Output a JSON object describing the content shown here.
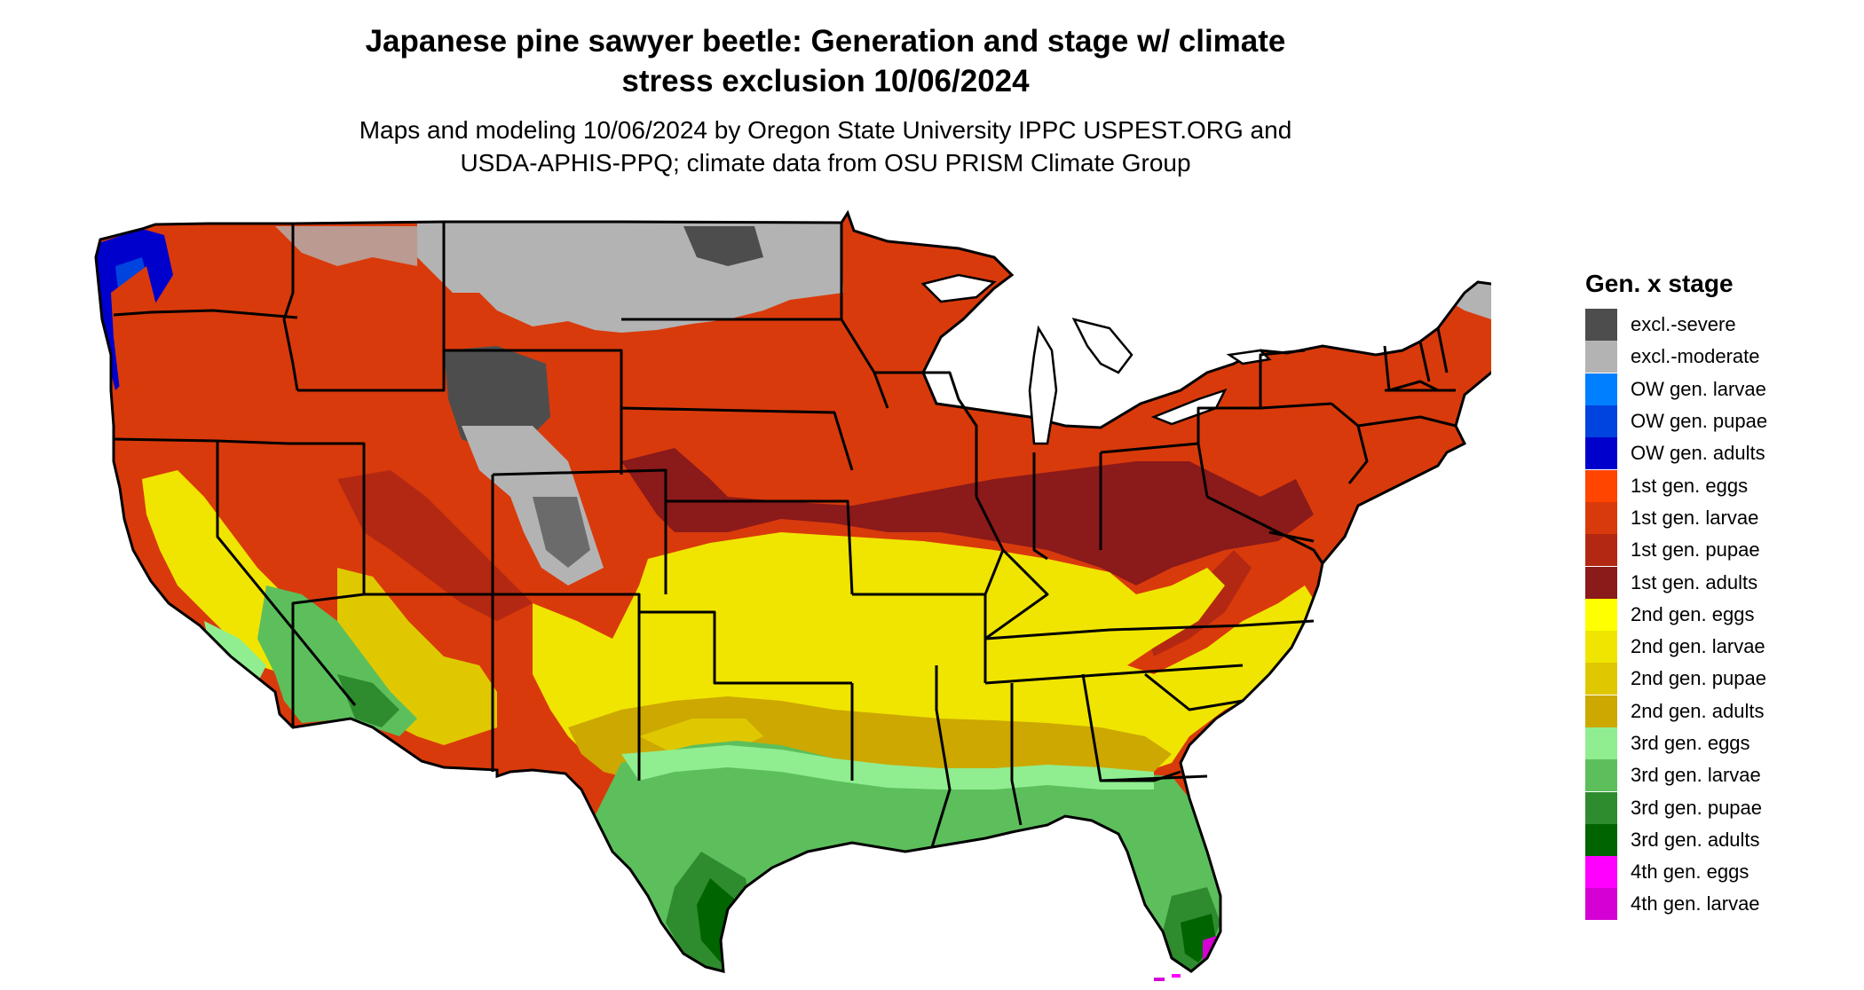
{
  "title_line1": "Japanese pine sawyer beetle: Generation and stage w/ climate",
  "title_line2": "stress exclusion 10/06/2024",
  "subtitle_line1": "Maps and modeling 10/06/2024 by Oregon State University IPPC USPEST.ORG and",
  "subtitle_line2": "USDA-APHIS-PPQ; climate data from OSU PRISM Climate Group",
  "legend": {
    "title": "Gen. x stage",
    "items": [
      {
        "label": "excl.-severe",
        "color": "#4d4d4d"
      },
      {
        "label": "excl.-moderate",
        "color": "#b3b3b3"
      },
      {
        "label": "OW gen. larvae",
        "color": "#0080ff"
      },
      {
        "label": "OW gen. pupae",
        "color": "#0044e0"
      },
      {
        "label": "OW gen. adults",
        "color": "#0000cc"
      },
      {
        "label": "1st gen. eggs",
        "color": "#ff4500"
      },
      {
        "label": "1st gen. larvae",
        "color": "#d93a0b"
      },
      {
        "label": "1st gen. pupae",
        "color": "#b32812"
      },
      {
        "label": "1st gen. adults",
        "color": "#8b1a1a"
      },
      {
        "label": "2nd gen. eggs",
        "color": "#ffff00"
      },
      {
        "label": "2nd gen. larvae",
        "color": "#f0e500"
      },
      {
        "label": "2nd gen. pupae",
        "color": "#e0c800"
      },
      {
        "label": "2nd gen. adults",
        "color": "#cca800"
      },
      {
        "label": "3rd gen. eggs",
        "color": "#90ee90"
      },
      {
        "label": "3rd gen. larvae",
        "color": "#5cbf5c"
      },
      {
        "label": "3rd gen. pupae",
        "color": "#2e8b2e"
      },
      {
        "label": "3rd gen. adults",
        "color": "#006400"
      },
      {
        "label": "4th gen. eggs",
        "color": "#ff00ff"
      },
      {
        "label": "4th gen. larvae",
        "color": "#d400d4"
      }
    ]
  }
}
